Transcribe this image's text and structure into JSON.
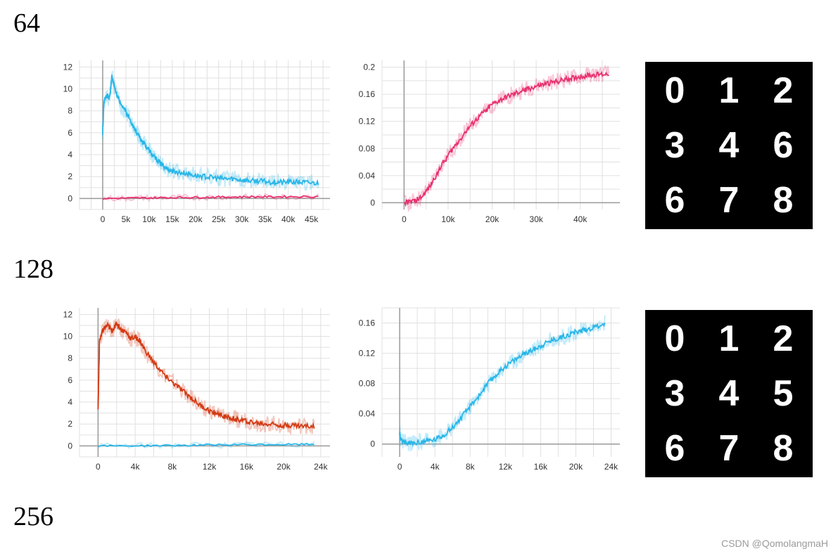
{
  "sections": [
    {
      "heading": "64"
    },
    {
      "heading": "128"
    },
    {
      "heading": "256"
    }
  ],
  "watermark": "CSDN @QomolangmaH",
  "digit_grids": [
    {
      "cells": [
        "0",
        "1",
        "2",
        "3",
        "4",
        "6",
        "6",
        "7",
        "8"
      ]
    },
    {
      "cells": [
        "0",
        "1",
        "2",
        "3",
        "4",
        "5",
        "6",
        "7",
        "8"
      ]
    }
  ],
  "chart_data": [
    {
      "type": "line",
      "xticks": [
        0,
        5000,
        10000,
        15000,
        20000,
        25000,
        30000,
        35000,
        40000,
        45000
      ],
      "xtick_labels": [
        "0",
        "5k",
        "10k",
        "15k",
        "20k",
        "25k",
        "30k",
        "35k",
        "40k",
        "45k"
      ],
      "yticks": [
        0,
        2,
        4,
        6,
        8,
        10,
        12
      ],
      "ytick_labels": [
        "0",
        "2",
        "4",
        "6",
        "8",
        "10",
        "12"
      ],
      "xlim": [
        -5000,
        49000
      ],
      "ylim": [
        -1,
        12.6
      ],
      "grid": true,
      "series": [
        {
          "color": "#29b6e8",
          "x": [
            0,
            300,
            1000,
            1500,
            2000,
            2500,
            3000,
            4000,
            5000,
            6000,
            7000,
            8000,
            9000,
            10000,
            11000,
            12000,
            13000,
            14000,
            15000,
            16000,
            18000,
            20000,
            22000,
            24000,
            26000,
            28000,
            30000,
            32000,
            34000,
            36000,
            38000,
            40000,
            42000,
            44000,
            46500
          ],
          "y": [
            6,
            9,
            9.4,
            9.2,
            11.2,
            10.2,
            9.6,
            8.4,
            8.0,
            7.1,
            6.3,
            5.5,
            5.0,
            4.4,
            3.8,
            3.4,
            3.0,
            2.7,
            2.5,
            2.4,
            2.3,
            2.1,
            2.0,
            1.9,
            1.8,
            1.8,
            1.7,
            1.6,
            1.6,
            1.5,
            1.5,
            1.5,
            1.5,
            1.45,
            1.4
          ]
        },
        {
          "color": "#e8316e",
          "x": [
            0,
            5000,
            10000,
            15000,
            20000,
            25000,
            30000,
            35000,
            40000,
            46500
          ],
          "y": [
            0.0,
            0.03,
            0.06,
            0.09,
            0.11,
            0.13,
            0.15,
            0.16,
            0.17,
            0.18
          ]
        }
      ]
    },
    {
      "type": "line",
      "xticks": [
        0,
        10000,
        20000,
        30000,
        40000
      ],
      "xtick_labels": [
        "0",
        "10k",
        "20k",
        "30k",
        "40k"
      ],
      "yticks": [
        0,
        0.04,
        0.08,
        0.12,
        0.16,
        0.2
      ],
      "ytick_labels": [
        "0",
        "0.04",
        "0.08",
        "0.12",
        "0.16",
        "0.2"
      ],
      "xlim": [
        -5000,
        49000
      ],
      "ylim": [
        -0.01,
        0.21
      ],
      "grid": true,
      "series": [
        {
          "color": "#e8316e",
          "x": [
            0,
            2000,
            4000,
            6000,
            8000,
            10000,
            12000,
            14000,
            16000,
            18000,
            20000,
            22000,
            24000,
            26000,
            28000,
            30000,
            32000,
            34000,
            36000,
            38000,
            40000,
            42000,
            44000,
            46500
          ],
          "y": [
            0.0,
            0.002,
            0.008,
            0.025,
            0.05,
            0.07,
            0.088,
            0.105,
            0.12,
            0.133,
            0.145,
            0.152,
            0.158,
            0.163,
            0.168,
            0.172,
            0.175,
            0.178,
            0.181,
            0.184,
            0.186,
            0.188,
            0.189,
            0.19
          ]
        }
      ]
    },
    {
      "type": "line",
      "xticks": [
        0,
        4000,
        8000,
        12000,
        16000,
        20000,
        24000
      ],
      "xtick_labels": [
        "0",
        "4k",
        "8k",
        "12k",
        "16k",
        "20k",
        "24k"
      ],
      "yticks": [
        0,
        2,
        4,
        6,
        8,
        10,
        12
      ],
      "ytick_labels": [
        "0",
        "2",
        "4",
        "6",
        "8",
        "10",
        "12"
      ],
      "xlim": [
        -2000,
        25000
      ],
      "ylim": [
        -1,
        12.6
      ],
      "grid": true,
      "series": [
        {
          "color": "#d33a14",
          "x": [
            0,
            150,
            500,
            1000,
            1500,
            2000,
            2500,
            3000,
            3500,
            4000,
            4500,
            5000,
            6000,
            7000,
            8000,
            9000,
            10000,
            11000,
            12000,
            13000,
            14000,
            15000,
            16000,
            17000,
            18000,
            19000,
            20000,
            21000,
            22000,
            23300
          ],
          "y": [
            3.3,
            9.6,
            10.6,
            11.0,
            10.5,
            11.2,
            10.6,
            10.4,
            9.8,
            9.9,
            9.6,
            8.8,
            7.6,
            6.6,
            5.8,
            5.1,
            4.4,
            3.7,
            3.2,
            2.9,
            2.6,
            2.4,
            2.3,
            2.1,
            2.0,
            2.0,
            1.9,
            1.9,
            1.8,
            1.8
          ]
        },
        {
          "color": "#29b6e8",
          "x": [
            0,
            4000,
            8000,
            12000,
            16000,
            20000,
            23300
          ],
          "y": [
            0.0,
            0.02,
            0.05,
            0.08,
            0.11,
            0.13,
            0.15
          ]
        }
      ]
    },
    {
      "type": "line",
      "xticks": [
        0,
        4000,
        8000,
        12000,
        16000,
        20000,
        24000
      ],
      "xtick_labels": [
        "0",
        "4k",
        "8k",
        "12k",
        "16k",
        "20k",
        "24k"
      ],
      "yticks": [
        0,
        0.04,
        0.08,
        0.12,
        0.16
      ],
      "ytick_labels": [
        "0",
        "0.04",
        "0.08",
        "0.12",
        "0.16"
      ],
      "xlim": [
        -2000,
        25000
      ],
      "ylim": [
        -0.017,
        0.18
      ],
      "grid": true,
      "series": [
        {
          "color": "#29b6e8",
          "x": [
            0,
            100,
            500,
            1000,
            2000,
            3000,
            4000,
            5000,
            6000,
            7000,
            8000,
            9000,
            10000,
            11000,
            12000,
            13000,
            14000,
            15000,
            16000,
            17000,
            18000,
            19000,
            20000,
            21000,
            22000,
            23300
          ],
          "y": [
            0.016,
            0.006,
            0.002,
            0.001,
            0.002,
            0.004,
            0.006,
            0.012,
            0.022,
            0.035,
            0.05,
            0.064,
            0.08,
            0.092,
            0.103,
            0.111,
            0.118,
            0.124,
            0.13,
            0.136,
            0.14,
            0.144,
            0.148,
            0.151,
            0.154,
            0.16
          ]
        }
      ]
    }
  ]
}
